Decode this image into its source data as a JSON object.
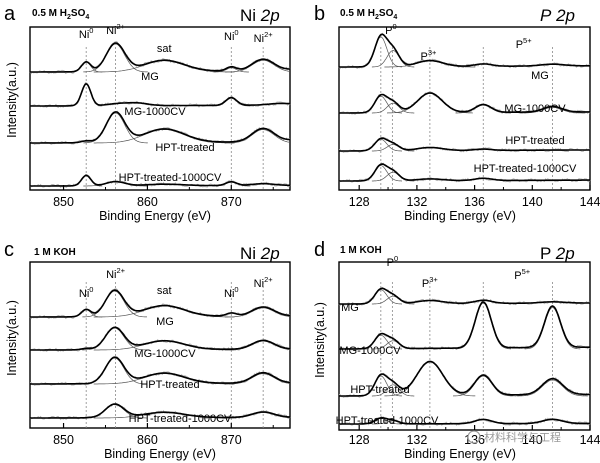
{
  "watermark": "材料科学与工程",
  "chart_data": [
    {
      "id": "a",
      "letter": "a",
      "type": "line",
      "condition": "0.5 M H2SO4",
      "condition_base": "0.5 M H",
      "condition_mid": "SO",
      "condition_sub1": "2",
      "condition_sub2": "4",
      "core_level": "Ni",
      "core_level_orbital": "2p",
      "xlabel": "Binding Energy (eV)",
      "ylabel": "Intensity(a.u.)",
      "xlim": [
        846,
        877
      ],
      "xticks": [
        850,
        860,
        870
      ],
      "tick_labels": [
        "850",
        "860",
        "870"
      ],
      "guides": [
        852.7,
        856.2,
        870.0,
        873.8
      ],
      "peak_labels": [
        {
          "text": "Ni",
          "sup": "0",
          "x": 852.7
        },
        {
          "text": "Ni",
          "sup": "2+",
          "x": 856.2
        },
        {
          "text": "sat",
          "sup": "",
          "x": 862.0
        },
        {
          "text": "Ni",
          "sup": "0",
          "x": 870.0
        },
        {
          "text": "Ni",
          "sup": "2+",
          "x": 873.8
        }
      ],
      "series": [
        {
          "name": "MG",
          "peaks": [
            {
              "c": 852.7,
              "a": 0.35,
              "w": 0.55
            },
            {
              "c": 856.2,
              "a": 1.0,
              "w": 1.1
            },
            {
              "c": 862.0,
              "a": 0.4,
              "w": 2.4
            },
            {
              "c": 870.0,
              "a": 0.15,
              "w": 0.6
            },
            {
              "c": 873.8,
              "a": 0.42,
              "w": 1.3
            },
            {
              "c": 879.5,
              "a": 0.1,
              "w": 2.0
            }
          ]
        },
        {
          "name": "MG-1000CV",
          "peaks": [
            {
              "c": 852.7,
              "a": 1.0,
              "w": 0.55
            },
            {
              "c": 856.3,
              "a": 0.08,
              "w": 1.2
            },
            {
              "c": 858.7,
              "a": 0.12,
              "w": 1.3
            },
            {
              "c": 870.0,
              "a": 0.35,
              "w": 0.65
            },
            {
              "c": 876.0,
              "a": 0.08,
              "w": 1.5
            }
          ]
        },
        {
          "name": "HPT-treated",
          "peaks": [
            {
              "c": 852.7,
              "a": 0.06,
              "w": 0.6
            },
            {
              "c": 856.2,
              "a": 1.0,
              "w": 1.1
            },
            {
              "c": 862.0,
              "a": 0.45,
              "w": 2.4
            },
            {
              "c": 873.8,
              "a": 0.45,
              "w": 1.3
            },
            {
              "c": 879.5,
              "a": 0.12,
              "w": 2.0
            }
          ]
        },
        {
          "name": "HPT-treated-1000CV",
          "peaks": [
            {
              "c": 852.7,
              "a": 0.7,
              "w": 0.55
            },
            {
              "c": 856.2,
              "a": 0.28,
              "w": 1.1
            },
            {
              "c": 862.0,
              "a": 0.1,
              "w": 2.2
            },
            {
              "c": 870.0,
              "a": 0.25,
              "w": 0.65
            },
            {
              "c": 873.8,
              "a": 0.12,
              "w": 1.3
            }
          ]
        }
      ]
    },
    {
      "id": "b",
      "letter": "b",
      "type": "line",
      "condition": "0.5 M H2SO4",
      "condition_base": "0.5 M H",
      "condition_mid": "SO",
      "condition_sub1": "2",
      "condition_sub2": "4",
      "core_level": "P",
      "core_level_orbital": "2p",
      "xlabel": "Binding Energy (eV)",
      "ylabel": "",
      "xlim": [
        126.6,
        144
      ],
      "xticks": [
        128,
        132,
        136,
        140,
        144
      ],
      "tick_labels": [
        "128",
        "132",
        "136",
        "140",
        "144"
      ],
      "guides": [
        129.5,
        130.3,
        132.9,
        136.6,
        141.4
      ],
      "peak_labels": [
        {
          "text": "P",
          "sup": "0",
          "x": 130.2
        },
        {
          "text": "P",
          "sup": "3+",
          "x": 132.8
        },
        {
          "text": "P",
          "sup": "5+",
          "x": 139.4
        }
      ],
      "series": [
        {
          "name": "MG",
          "peaks": [
            {
              "c": 129.5,
              "a": 1.0,
              "w": 0.42
            },
            {
              "c": 130.35,
              "a": 0.55,
              "w": 0.42
            },
            {
              "c": 132.9,
              "a": 0.2,
              "w": 0.9
            },
            {
              "c": 136.6,
              "a": 0.08,
              "w": 0.6
            },
            {
              "c": 141.4,
              "a": 0.06,
              "w": 0.8
            }
          ]
        },
        {
          "name": "MG-1000CV",
          "peaks": [
            {
              "c": 129.5,
              "a": 0.6,
              "w": 0.42
            },
            {
              "c": 130.35,
              "a": 0.35,
              "w": 0.42
            },
            {
              "c": 132.9,
              "a": 0.7,
              "w": 0.85
            },
            {
              "c": 136.6,
              "a": 0.28,
              "w": 0.55
            },
            {
              "c": 141.4,
              "a": 0.2,
              "w": 0.65
            }
          ]
        },
        {
          "name": "HPT-treated",
          "peaks": [
            {
              "c": 129.5,
              "a": 0.45,
              "w": 0.42
            },
            {
              "c": 130.35,
              "a": 0.25,
              "w": 0.42
            },
            {
              "c": 132.9,
              "a": 0.12,
              "w": 0.9
            },
            {
              "c": 136.6,
              "a": 0.05,
              "w": 0.6
            }
          ]
        },
        {
          "name": "HPT-treated-1000CV",
          "peaks": [
            {
              "c": 129.5,
              "a": 0.7,
              "w": 0.42
            },
            {
              "c": 130.35,
              "a": 0.4,
              "w": 0.42
            },
            {
              "c": 132.9,
              "a": 0.08,
              "w": 0.9
            },
            {
              "c": 136.6,
              "a": 0.1,
              "w": 0.6
            }
          ]
        }
      ]
    },
    {
      "id": "c",
      "letter": "c",
      "type": "line",
      "condition": "1 M KOH",
      "condition_base": "1 M KOH",
      "condition_mid": "",
      "condition_sub1": "",
      "condition_sub2": "",
      "core_level": "Ni",
      "core_level_orbital": "2p",
      "xlabel": "Binding Energy (eV)",
      "ylabel": "Intensity(a.u.)",
      "xlim": [
        846,
        877
      ],
      "xticks": [
        850,
        860,
        870
      ],
      "tick_labels": [
        "850",
        "860",
        "870"
      ],
      "guides": [
        852.7,
        856.2,
        870.0,
        873.8
      ],
      "peak_labels": [
        {
          "text": "Ni",
          "sup": "0",
          "x": 852.7
        },
        {
          "text": "Ni",
          "sup": "2+",
          "x": 856.2
        },
        {
          "text": "sat",
          "sup": "",
          "x": 862.0
        },
        {
          "text": "Ni",
          "sup": "0",
          "x": 870.0
        },
        {
          "text": "Ni",
          "sup": "2+",
          "x": 873.8
        }
      ],
      "series": [
        {
          "name": "MG",
          "peaks": [
            {
              "c": 852.7,
              "a": 0.28,
              "w": 0.55
            },
            {
              "c": 856.1,
              "a": 1.0,
              "w": 1.1
            },
            {
              "c": 862.0,
              "a": 0.42,
              "w": 2.4
            },
            {
              "c": 870.0,
              "a": 0.12,
              "w": 0.6
            },
            {
              "c": 873.8,
              "a": 0.35,
              "w": 1.3
            }
          ]
        },
        {
          "name": "MG-1000CV",
          "peaks": [
            {
              "c": 852.7,
              "a": 0.06,
              "w": 0.55
            },
            {
              "c": 856.1,
              "a": 1.0,
              "w": 1.1
            },
            {
              "c": 862.0,
              "a": 0.4,
              "w": 2.4
            },
            {
              "c": 873.8,
              "a": 0.4,
              "w": 1.3
            }
          ]
        },
        {
          "name": "HPT-treated",
          "peaks": [
            {
              "c": 856.1,
              "a": 1.0,
              "w": 1.1
            },
            {
              "c": 862.0,
              "a": 0.4,
              "w": 2.4
            },
            {
              "c": 873.8,
              "a": 0.4,
              "w": 1.3
            }
          ]
        },
        {
          "name": "HPT-treated-1000CV",
          "peaks": [
            {
              "c": 856.1,
              "a": 0.75,
              "w": 1.1
            },
            {
              "c": 862.0,
              "a": 0.3,
              "w": 2.4
            },
            {
              "c": 873.8,
              "a": 0.3,
              "w": 1.3
            }
          ]
        }
      ]
    },
    {
      "id": "d",
      "letter": "d",
      "type": "line",
      "condition": "1 M KOH",
      "condition_base": "1 M KOH",
      "condition_mid": "",
      "condition_sub1": "",
      "condition_sub2": "",
      "core_level": "P",
      "core_level_orbital": "2p",
      "xlabel": "Binding Energy (eV)",
      "ylabel": "Intensity(a.u.)",
      "xlim": [
        126.6,
        144
      ],
      "xticks": [
        128,
        132,
        136,
        140,
        144
      ],
      "tick_labels": [
        "128",
        "132",
        "136",
        "140",
        "144"
      ],
      "guides": [
        129.5,
        130.3,
        132.9,
        136.6,
        141.4
      ],
      "peak_labels": [
        {
          "text": "P",
          "sup": "0",
          "x": 130.3
        },
        {
          "text": "P",
          "sup": "3+",
          "x": 132.9
        },
        {
          "text": "P",
          "sup": "5+",
          "x": 139.3
        }
      ],
      "series": [
        {
          "name": "MG",
          "peaks": [
            {
              "c": 129.5,
              "a": 0.55,
              "w": 0.42
            },
            {
              "c": 130.35,
              "a": 0.3,
              "w": 0.42
            },
            {
              "c": 132.9,
              "a": 0.12,
              "w": 0.9
            },
            {
              "c": 136.6,
              "a": 0.12,
              "w": 0.6
            },
            {
              "c": 141.4,
              "a": 0.05,
              "w": 0.8
            }
          ]
        },
        {
          "name": "MG-1000CV",
          "peaks": [
            {
              "c": 129.5,
              "a": 0.3,
              "w": 0.42
            },
            {
              "c": 130.35,
              "a": 0.18,
              "w": 0.42
            },
            {
              "c": 136.6,
              "a": 1.0,
              "w": 0.55
            },
            {
              "c": 141.4,
              "a": 0.9,
              "w": 0.55
            }
          ]
        },
        {
          "name": "HPT-treated",
          "peaks": [
            {
              "c": 129.5,
              "a": 0.5,
              "w": 0.42
            },
            {
              "c": 130.35,
              "a": 0.28,
              "w": 0.42
            },
            {
              "c": 132.9,
              "a": 0.85,
              "w": 0.9
            },
            {
              "c": 136.6,
              "a": 0.5,
              "w": 0.6
            },
            {
              "c": 141.4,
              "a": 0.4,
              "w": 0.7
            }
          ]
        },
        {
          "name": "HPT-treated-1000CV",
          "peaks": [
            {
              "c": 129.5,
              "a": 0.4,
              "w": 0.42
            },
            {
              "c": 130.35,
              "a": 0.22,
              "w": 0.42
            },
            {
              "c": 136.6,
              "a": 0.3,
              "w": 0.6
            },
            {
              "c": 141.4,
              "a": 0.3,
              "w": 0.7
            }
          ]
        }
      ]
    }
  ]
}
